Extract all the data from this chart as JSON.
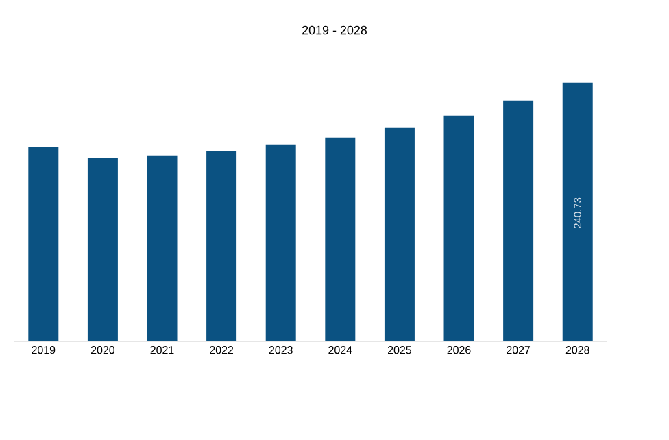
{
  "chart_data": {
    "type": "bar",
    "title": "2019 - 2028",
    "categories": [
      "2019",
      "2020",
      "2021",
      "2022",
      "2023",
      "2024",
      "2025",
      "2026",
      "2027",
      "2028"
    ],
    "values": [
      180.9,
      170.7,
      173.2,
      177.0,
      183.4,
      189.8,
      198.7,
      210.2,
      224.2,
      240.73
    ],
    "value_labels": [
      null,
      null,
      null,
      null,
      null,
      null,
      null,
      null,
      null,
      "240.73"
    ],
    "color": "#0b5282"
  }
}
